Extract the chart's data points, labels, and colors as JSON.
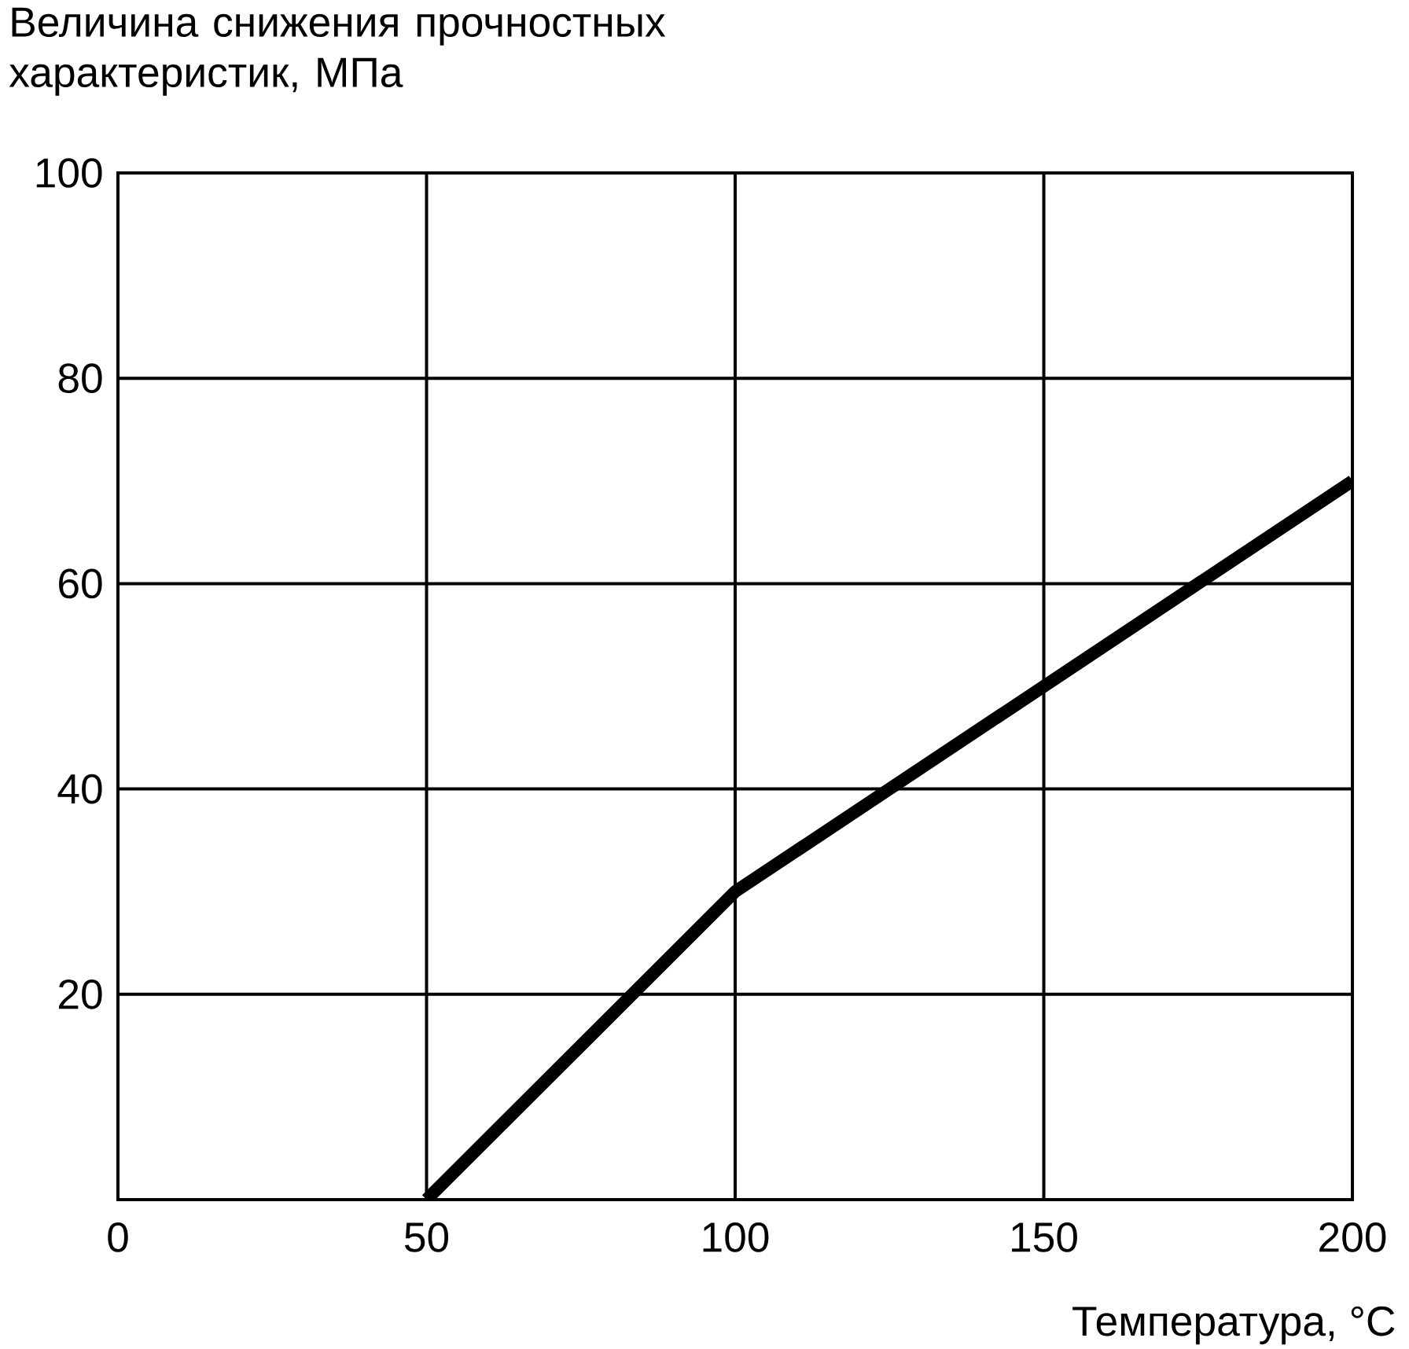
{
  "chart_data": {
    "type": "line",
    "xlabel": "Температура, °C",
    "ylabel": "Величина снижения прочностных характеристик, МПа",
    "x": [
      50,
      100,
      150,
      200
    ],
    "series": [
      {
        "color": "#000000",
        "values": [
          0,
          30,
          50,
          70
        ]
      }
    ],
    "xlim": [
      0,
      200
    ],
    "ylim": [
      0,
      100
    ],
    "xticks": [
      0,
      50,
      100,
      150,
      200
    ],
    "yticks": [
      20,
      40,
      60,
      80,
      100
    ],
    "grid": true,
    "marker": "none",
    "line_style": "solid"
  }
}
